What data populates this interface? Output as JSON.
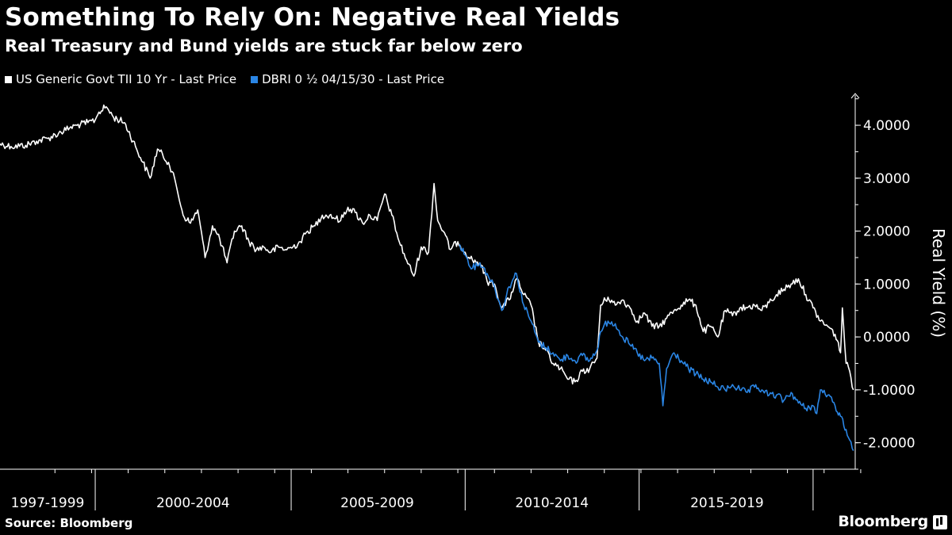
{
  "header": {
    "title": "Something To Rely On: Negative Real Yields",
    "subtitle": "Real Treasury and Bund yields are stuck far below zero"
  },
  "legend": [
    {
      "label": "US Generic Govt TII 10 Yr - Last Price",
      "color": "#ffffff"
    },
    {
      "label": "DBRI 0 ½ 04/15/30 - Last Price",
      "color": "#2a85e4"
    }
  ],
  "footer": {
    "source": "Source: Bloomberg",
    "brand": "Bloomberg"
  },
  "chart_data": {
    "type": "line",
    "title": "Something To Rely On: Negative Real Yields",
    "subtitle": "Real Treasury and Bund yields are stuck far below zero",
    "xlabel": "",
    "ylabel": "Real Yield (%)",
    "xlim": [
      1997.0,
      2020.35
    ],
    "ylim": [
      -2.5,
      4.6
    ],
    "yticks": [
      4,
      3,
      2,
      1,
      0,
      -1,
      -2
    ],
    "ytick_labels": [
      "4.0000",
      "3.0000",
      "2.0000",
      "1.0000",
      "0.0000",
      "-1.0000",
      "-2.0000"
    ],
    "xtick_boundaries": [
      1999.6,
      2004.95,
      2009.7,
      2014.45,
      2019.2
    ],
    "xtick_labels": [
      {
        "label": "1997-1999",
        "center": 1998.3
      },
      {
        "label": "2000-2004",
        "center": 2002.27
      },
      {
        "label": "2005-2009",
        "center": 2007.3
      },
      {
        "label": "2010-2014",
        "center": 2012.07
      },
      {
        "label": "2015-2019",
        "center": 2016.85
      }
    ],
    "grid": false,
    "legend_position": "top-left",
    "series": [
      {
        "name": "US Generic Govt TII 10 Yr - Last Price",
        "color": "#ffffff",
        "x": [
          1997.0,
          1997.3,
          1997.7,
          1998.0,
          1998.3,
          1998.6,
          1998.9,
          1999.1,
          1999.4,
          1999.6,
          1999.7,
          1999.9,
          2000.1,
          2000.4,
          2000.7,
          2000.9,
          2001.1,
          2001.3,
          2001.6,
          2001.8,
          2002.0,
          2002.2,
          2002.4,
          2002.6,
          2002.8,
          2003.0,
          2003.2,
          2003.4,
          2003.6,
          2003.8,
          2004.0,
          2004.2,
          2004.4,
          2004.6,
          2004.8,
          2005.0,
          2005.2,
          2005.4,
          2005.6,
          2005.8,
          2006.0,
          2006.3,
          2006.5,
          2006.7,
          2006.9,
          2007.1,
          2007.3,
          2007.5,
          2007.7,
          2007.9,
          2008.1,
          2008.3,
          2008.5,
          2008.7,
          2008.85,
          2008.95,
          2009.1,
          2009.3,
          2009.5,
          2009.7,
          2009.9,
          2010.1,
          2010.3,
          2010.5,
          2010.7,
          2010.9,
          2011.1,
          2011.3,
          2011.5,
          2011.7,
          2011.9,
          2012.1,
          2012.3,
          2012.5,
          2012.7,
          2012.9,
          2013.1,
          2013.3,
          2013.4,
          2013.6,
          2013.8,
          2014.0,
          2014.2,
          2014.4,
          2014.6,
          2014.8,
          2015.0,
          2015.2,
          2015.4,
          2015.6,
          2015.8,
          2016.0,
          2016.2,
          2016.4,
          2016.6,
          2016.8,
          2017.0,
          2017.2,
          2017.4,
          2017.6,
          2017.8,
          2018.0,
          2018.2,
          2018.4,
          2018.6,
          2018.8,
          2019.0,
          2019.2,
          2019.4,
          2019.6,
          2019.8,
          2019.95,
          2020.0,
          2020.1,
          2020.2,
          2020.3
        ],
        "values": [
          3.65,
          3.6,
          3.62,
          3.7,
          3.75,
          3.85,
          3.95,
          4.0,
          4.05,
          4.1,
          4.25,
          4.35,
          4.15,
          4.05,
          3.6,
          3.3,
          3.0,
          3.55,
          3.3,
          2.9,
          2.3,
          2.15,
          2.4,
          1.5,
          2.1,
          1.85,
          1.4,
          2.0,
          2.1,
          1.8,
          1.65,
          1.7,
          1.6,
          1.7,
          1.65,
          1.7,
          1.8,
          2.0,
          2.1,
          2.3,
          2.3,
          2.2,
          2.45,
          2.35,
          2.15,
          2.3,
          2.2,
          2.7,
          2.3,
          1.8,
          1.45,
          1.15,
          1.7,
          1.6,
          2.9,
          2.2,
          2.0,
          1.65,
          1.8,
          1.6,
          1.45,
          1.4,
          1.05,
          1.0,
          0.55,
          0.7,
          1.1,
          0.8,
          0.6,
          -0.1,
          -0.25,
          -0.5,
          -0.6,
          -0.8,
          -0.85,
          -0.65,
          -0.6,
          -0.4,
          0.6,
          0.75,
          0.6,
          0.7,
          0.55,
          0.3,
          0.45,
          0.2,
          0.2,
          0.35,
          0.5,
          0.6,
          0.7,
          0.6,
          0.1,
          0.2,
          0.0,
          0.5,
          0.4,
          0.55,
          0.55,
          0.6,
          0.5,
          0.65,
          0.8,
          0.9,
          1.0,
          1.1,
          0.8,
          0.55,
          0.3,
          0.2,
          0.05,
          -0.3,
          0.55,
          -0.5,
          -0.65,
          -1.0
        ]
      },
      {
        "name": "DBRI 0 ½ 04/15/30 - Last Price",
        "color": "#2a85e4",
        "x": [
          2009.55,
          2009.7,
          2009.9,
          2010.1,
          2010.3,
          2010.5,
          2010.7,
          2010.9,
          2011.1,
          2011.3,
          2011.5,
          2011.7,
          2011.9,
          2012.1,
          2012.3,
          2012.5,
          2012.7,
          2012.9,
          2013.1,
          2013.3,
          2013.4,
          2013.6,
          2013.8,
          2014.0,
          2014.2,
          2014.4,
          2014.6,
          2014.8,
          2015.0,
          2015.1,
          2015.2,
          2015.4,
          2015.6,
          2015.8,
          2016.0,
          2016.2,
          2016.4,
          2016.6,
          2016.8,
          2017.0,
          2017.2,
          2017.4,
          2017.6,
          2017.8,
          2018.0,
          2018.2,
          2018.4,
          2018.6,
          2018.8,
          2019.0,
          2019.2,
          2019.3,
          2019.4,
          2019.6,
          2019.8,
          2019.95,
          2020.1,
          2020.2,
          2020.3
        ],
        "values": [
          1.75,
          1.55,
          1.3,
          1.4,
          1.2,
          0.95,
          0.5,
          0.95,
          1.2,
          0.6,
          0.3,
          -0.1,
          -0.2,
          -0.3,
          -0.45,
          -0.35,
          -0.45,
          -0.35,
          -0.45,
          -0.25,
          0.1,
          0.3,
          0.25,
          0.0,
          -0.15,
          -0.3,
          -0.45,
          -0.4,
          -0.5,
          -1.3,
          -0.6,
          -0.3,
          -0.45,
          -0.6,
          -0.7,
          -0.8,
          -0.85,
          -0.95,
          -1.0,
          -0.9,
          -1.0,
          -1.05,
          -0.95,
          -1.0,
          -1.1,
          -1.1,
          -1.2,
          -1.05,
          -1.25,
          -1.35,
          -1.3,
          -1.45,
          -1.0,
          -1.1,
          -1.3,
          -1.5,
          -1.75,
          -1.95,
          -2.15
        ]
      }
    ]
  }
}
